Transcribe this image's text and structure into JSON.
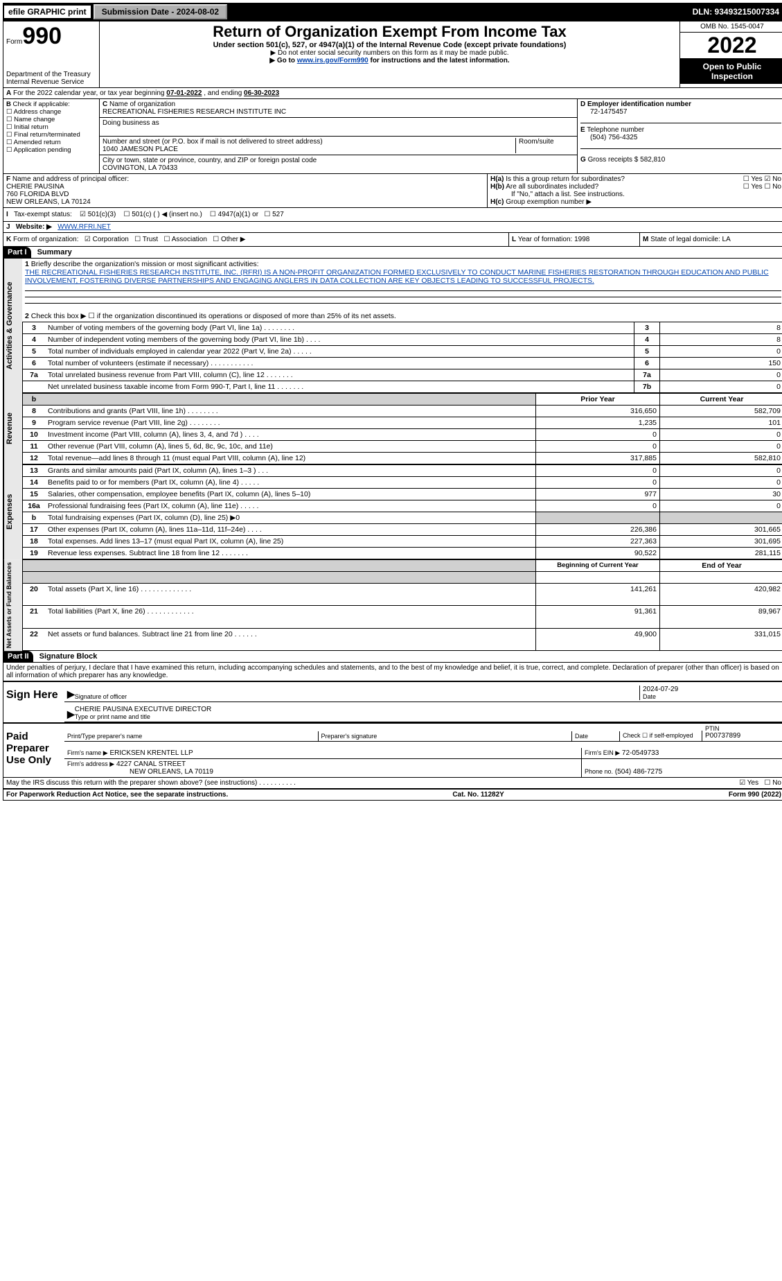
{
  "top": {
    "efile": "efile GRAPHIC print",
    "submission": "Submission Date - 2024-08-02",
    "dln": "DLN: 93493215007334"
  },
  "hdr": {
    "form": "Form",
    "num": "990",
    "title": "Return of Organization Exempt From Income Tax",
    "sub1": "Under section 501(c), 527, or 4947(a)(1) of the Internal Revenue Code (except private foundations)",
    "sub2": "▶ Do not enter social security numbers on this form as it may be made public.",
    "sub3_pre": "▶ Go to ",
    "sub3_link": "www.irs.gov/Form990",
    "sub3_post": " for instructions and the latest information.",
    "dept": "Department of the Treasury",
    "irs": "Internal Revenue Service",
    "omb": "OMB No. 1545-0047",
    "year": "2022",
    "open": "Open to Public Inspection"
  },
  "A": {
    "text_pre": "For the 2022 calendar year, or tax year beginning ",
    "begin": "07-01-2022",
    "mid": " , and ending ",
    "end": "06-30-2023"
  },
  "B": {
    "label": "Check if applicable:",
    "opts": [
      "Address change",
      "Name change",
      "Initial return",
      "Final return/terminated",
      "Amended return",
      "Application pending"
    ]
  },
  "C": {
    "name_lbl": "Name of organization",
    "name": "RECREATIONAL FISHERIES RESEARCH INSTITUTE INC",
    "dba_lbl": "Doing business as",
    "dba": "",
    "street_lbl": "Number and street (or P.O. box if mail is not delivered to street address)",
    "room_lbl": "Room/suite",
    "street": "1040 JAMESON PLACE",
    "city_lbl": "City or town, state or province, country, and ZIP or foreign postal code",
    "city": "COVINGTON, LA  70433"
  },
  "D": {
    "lbl": "Employer identification number",
    "val": "72-1475457"
  },
  "E": {
    "lbl": "Telephone number",
    "val": "(504) 756-4325"
  },
  "G": {
    "lbl": "Gross receipts $",
    "val": "582,810"
  },
  "F": {
    "lbl": "Name and address of principal officer:",
    "name": "CHERIE PAUSINA",
    "addr1": "760 FLORIDA BLVD",
    "addr2": "NEW ORLEANS, LA  70124"
  },
  "H": {
    "a": "Is this a group return for subordinates?",
    "a_ans_yes": "Yes",
    "a_ans_no": "No",
    "b": "Are all subordinates included?",
    "b_note": "If \"No,\" attach a list. See instructions.",
    "c": "Group exemption number ▶"
  },
  "I": {
    "lbl": "Tax-exempt status:",
    "o1": "501(c)(3)",
    "o2": "501(c) (  ) ◀ (insert no.)",
    "o3": "4947(a)(1) or",
    "o4": "527"
  },
  "J": {
    "lbl": "Website: ▶",
    "val": "WWW.RFRI.NET"
  },
  "K": {
    "lbl": "Form of organization:",
    "o1": "Corporation",
    "o2": "Trust",
    "o3": "Association",
    "o4": "Other ▶"
  },
  "L": {
    "lbl": "Year of formation:",
    "val": "1998"
  },
  "M": {
    "lbl": "State of legal domicile:",
    "val": "LA"
  },
  "part1": {
    "hdr": "Part I",
    "title": "Summary",
    "l1_lbl": "Briefly describe the organization's mission or most significant activities:",
    "l1_txt": "THE RECREATIONAL FISHERIES RESEARCH INSTITUTE, INC. (RFRI) IS A NON-PROFIT ORGANIZATION FORMED EXCLUSIVELY TO CONDUCT MARINE FISHERIES RESTORATION THROUGH EDUCATION AND PUBLIC INVOLVEMENT, FOSTERING DIVERSE PARTNERSHIPS AND ENGAGING ANGLERS IN DATA COLLECTION ARE KEY OBJECTS LEADING TO SUCCESSFUL PROJECTS.",
    "l2": "Check this box ▶ ☐ if the organization discontinued its operations or disposed of more than 25% of its net assets.",
    "rows_gov": [
      {
        "n": "3",
        "d": "Number of voting members of the governing body (Part VI, line 1a)   .    .    .    .    .    .    .    .",
        "b": "3",
        "v": "8"
      },
      {
        "n": "4",
        "d": "Number of independent voting members of the governing body (Part VI, line 1b)    .    .    .    .",
        "b": "4",
        "v": "8"
      },
      {
        "n": "5",
        "d": "Total number of individuals employed in calendar year 2022 (Part V, line 2a)   .    .    .    .    .",
        "b": "5",
        "v": "0"
      },
      {
        "n": "6",
        "d": "Total number of volunteers (estimate if necessary)    .    .    .    .    .    .    .    .    .    .    .",
        "b": "6",
        "v": "150"
      },
      {
        "n": "7a",
        "d": "Total unrelated business revenue from Part VIII, column (C), line 12   .    .    .    .    .    .    .",
        "b": "7a",
        "v": "0"
      },
      {
        "n": "",
        "d": "Net unrelated business taxable income from Form 990-T, Part I, line 11   .    .    .    .    .    .    .",
        "b": "7b",
        "v": "0"
      }
    ],
    "col_prior": "Prior Year",
    "col_curr": "Current Year",
    "rows_rev": [
      {
        "n": "8",
        "d": "Contributions and grants (Part VIII, line 1h)    .    .    .    .    .    .    .    .",
        "p": "316,650",
        "c": "582,709"
      },
      {
        "n": "9",
        "d": "Program service revenue (Part VIII, line 2g)    .    .    .    .    .    .    .    .",
        "p": "1,235",
        "c": "101"
      },
      {
        "n": "10",
        "d": "Investment income (Part VIII, column (A), lines 3, 4, and 7d )    .    .    .    .",
        "p": "0",
        "c": "0"
      },
      {
        "n": "11",
        "d": "Other revenue (Part VIII, column (A), lines 5, 6d, 8c, 9c, 10c, and 11e)",
        "p": "0",
        "c": "0"
      },
      {
        "n": "12",
        "d": "Total revenue—add lines 8 through 11 (must equal Part VIII, column (A), line 12)",
        "p": "317,885",
        "c": "582,810"
      }
    ],
    "rows_exp": [
      {
        "n": "13",
        "d": "Grants and similar amounts paid (Part IX, column (A), lines 1–3 )   .    .    .",
        "p": "0",
        "c": "0"
      },
      {
        "n": "14",
        "d": "Benefits paid to or for members (Part IX, column (A), line 4)   .    .    .    .    .",
        "p": "0",
        "c": "0"
      },
      {
        "n": "15",
        "d": "Salaries, other compensation, employee benefits (Part IX, column (A), lines 5–10)",
        "p": "977",
        "c": "30"
      },
      {
        "n": "16a",
        "d": "Professional fundraising fees (Part IX, column (A), line 11e)    .    .    .    .    .",
        "p": "0",
        "c": "0"
      },
      {
        "n": "b",
        "d": "Total fundraising expenses (Part IX, column (D), line 25) ▶0",
        "p": "",
        "c": "",
        "shade": true
      },
      {
        "n": "17",
        "d": "Other expenses (Part IX, column (A), lines 11a–11d, 11f–24e)   .    .    .    .",
        "p": "226,386",
        "c": "301,665"
      },
      {
        "n": "18",
        "d": "Total expenses. Add lines 13–17 (must equal Part IX, column (A), line 25)",
        "p": "227,363",
        "c": "301,695"
      },
      {
        "n": "19",
        "d": "Revenue less expenses. Subtract line 18 from line 12   .    .    .    .    .    .    .",
        "p": "90,522",
        "c": "281,115"
      }
    ],
    "col_begin": "Beginning of Current Year",
    "col_end": "End of Year",
    "rows_net": [
      {
        "n": "20",
        "d": "Total assets (Part X, line 16)   .    .    .    .    .    .    .    .    .    .    .    .    .",
        "p": "141,261",
        "c": "420,982"
      },
      {
        "n": "21",
        "d": "Total liabilities (Part X, line 26)   .    .    .    .    .    .    .    .    .    .    .    .",
        "p": "91,361",
        "c": "89,967"
      },
      {
        "n": "22",
        "d": "Net assets or fund balances. Subtract line 21 from line 20   .    .    .    .    .    .",
        "p": "49,900",
        "c": "331,015"
      }
    ],
    "tab_gov": "Activities & Governance",
    "tab_rev": "Revenue",
    "tab_exp": "Expenses",
    "tab_net": "Net Assets or Fund Balances",
    "b_lbl": "b"
  },
  "part2": {
    "hdr": "Part II",
    "title": "Signature Block",
    "decl": "Under penalties of perjury, I declare that I have examined this return, including accompanying schedules and statements, and to the best of my knowledge and belief, it is true, correct, and complete. Declaration of preparer (other than officer) is based on all information of which preparer has any knowledge.",
    "sign_here": "Sign Here",
    "sig_officer": "Signature of officer",
    "sig_date": "2024-07-29",
    "date_lbl": "Date",
    "name_title": "CHERIE PAUSINA  EXECUTIVE DIRECTOR",
    "name_title_lbl": "Type or print name and title",
    "paid": "Paid Preparer Use Only",
    "prep_name_lbl": "Print/Type preparer's name",
    "prep_name": "",
    "prep_sig_lbl": "Preparer's signature",
    "prep_date_lbl": "Date",
    "prep_chk": "Check ☐ if self-employed",
    "ptin_lbl": "PTIN",
    "ptin": "P00737899",
    "firm_name_lbl": "Firm's name    ▶",
    "firm_name": "ERICKSEN KRENTEL LLP",
    "firm_ein_lbl": "Firm's EIN ▶",
    "firm_ein": "72-0549733",
    "firm_addr_lbl": "Firm's address ▶",
    "firm_addr1": "4227 CANAL STREET",
    "firm_addr2": "NEW ORLEANS, LA  70119",
    "phone_lbl": "Phone no.",
    "phone": "(504) 486-7275",
    "discuss": "May the IRS discuss this return with the preparer shown above? (see instructions)    .    .    .    .    .    .    .    .    .    .",
    "yes": "Yes",
    "no": "No"
  },
  "footer": {
    "left": "For Paperwork Reduction Act Notice, see the separate instructions.",
    "mid": "Cat. No. 11282Y",
    "right": "Form 990 (2022)"
  }
}
